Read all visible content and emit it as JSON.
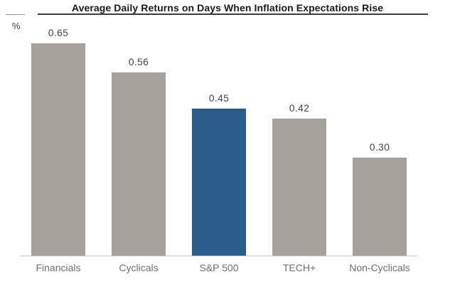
{
  "title": "Average Daily Returns on Days When Inflation Expectations Rise",
  "y_axis_unit": "%",
  "chart_data": {
    "type": "bar",
    "title": "Average Daily Returns on Days When Inflation Expectations Rise",
    "categories": [
      "Financials",
      "Cyclicals",
      "S&P 500",
      "TECH+",
      "Non-Cyclicals"
    ],
    "values": [
      0.65,
      0.56,
      0.45,
      0.42,
      0.3
    ],
    "value_labels": [
      "0.65",
      "0.56",
      "0.45",
      "0.42",
      "0.30"
    ],
    "xlabel": "",
    "ylabel": "%",
    "ylim": [
      0,
      0.74
    ],
    "grid": false,
    "legend": "none",
    "highlight_index": 2,
    "highlight_category": "S&P 500",
    "colors": {
      "default_bar": "#a7a19b",
      "highlight_bar": "#2a5d8b",
      "axis_line": "#c6c6c6",
      "title_text": "#1a1a1a",
      "value_label_text": "#454545",
      "category_label_text": "#6f6f6f"
    }
  }
}
